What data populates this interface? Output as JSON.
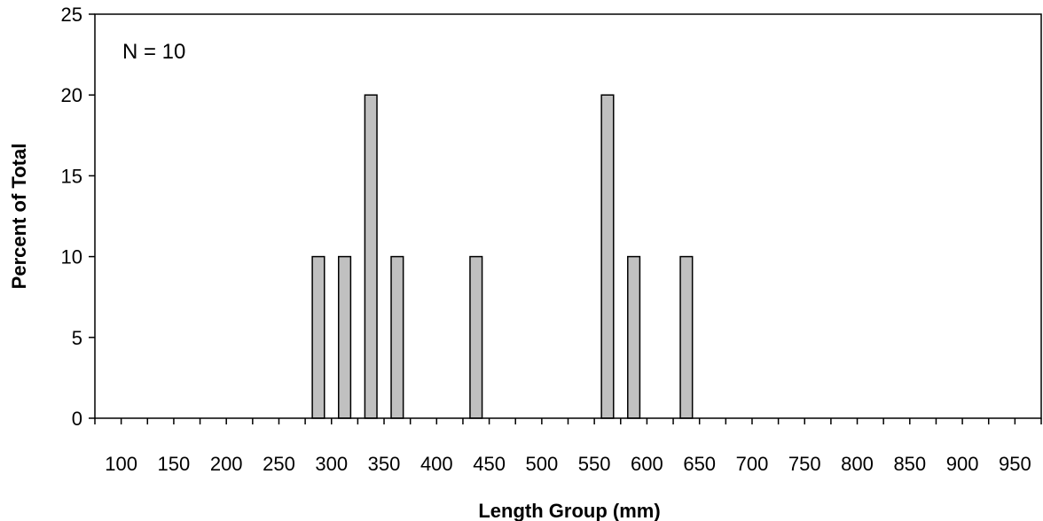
{
  "chart_data": {
    "type": "bar",
    "annotation": "N = 10",
    "xlabel": "Length Group (mm)",
    "ylabel": "Percent of Total",
    "xlim": [
      100,
      1000
    ],
    "ylim": [
      0,
      25
    ],
    "x_tick_labels": [
      "100",
      "150",
      "200",
      "250",
      "300",
      "350",
      "400",
      "450",
      "500",
      "550",
      "600",
      "650",
      "700",
      "750",
      "800",
      "850",
      "900",
      "950"
    ],
    "y_tick_labels": [
      "0",
      "5",
      "10",
      "15",
      "20",
      "25"
    ],
    "bin_width": 25,
    "grid": false,
    "legend": "none",
    "bar_color": "#c0c0c0",
    "x": [
      300,
      325,
      350,
      375,
      450,
      575,
      600,
      650
    ],
    "values": [
      10,
      10,
      20,
      10,
      10,
      20,
      10,
      10
    ]
  }
}
